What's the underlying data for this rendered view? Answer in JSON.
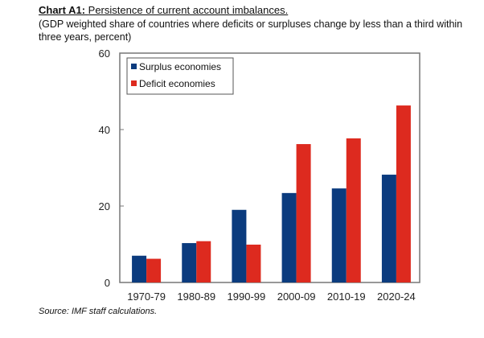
{
  "chart_data": {
    "type": "bar",
    "title_prefix": "Chart A1:",
    "title": "Persistence of current account imbalances.",
    "subtitle": "(GDP weighted share of countries where deficits or surpluses change by less than a third within three years, percent)",
    "xlabel": "",
    "ylabel": "",
    "ylim": [
      0,
      60
    ],
    "yticks": [
      0,
      20,
      40,
      60
    ],
    "categories": [
      "1970-79",
      "1980-89",
      "1990-99",
      "2000-09",
      "2010-19",
      "2020-24"
    ],
    "series": [
      {
        "name": "Surplus economies",
        "color": "#0b3b7e",
        "values": [
          7.0,
          10.3,
          19.0,
          23.4,
          24.6,
          28.2
        ]
      },
      {
        "name": "Deficit economies",
        "color": "#dd2a1f",
        "values": [
          6.2,
          10.8,
          9.9,
          36.2,
          37.7,
          46.3
        ]
      }
    ],
    "legend_position": "top-left",
    "grid": false,
    "source": "Source: IMF staff calculations."
  }
}
